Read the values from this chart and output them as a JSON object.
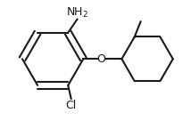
{
  "background_color": "#ffffff",
  "line_color": "#1a1a1a",
  "line_width": 1.5,
  "text_color": "#1a1a1a",
  "NH2_label": "NH$_2$",
  "O_label": "O",
  "Cl_label": "Cl",
  "font_size": 9,
  "fig_width": 2.14,
  "fig_height": 1.36,
  "dpi": 100
}
